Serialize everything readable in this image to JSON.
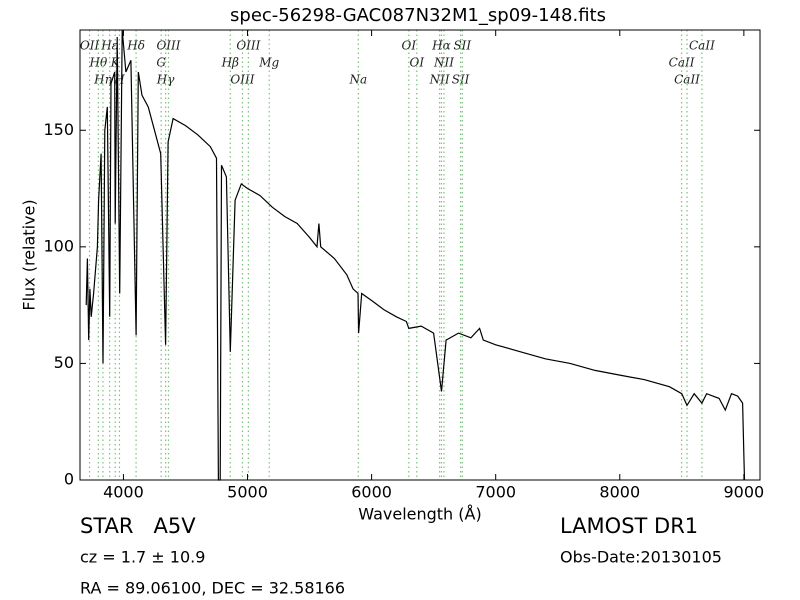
{
  "chart_data": {
    "type": "line",
    "title": "spec-56298-GAC087N32M1_sp09-148.fits",
    "x_label": "Wavelength (Å)",
    "y_label": "Flux (relative)",
    "xlim": [
      3650,
      9130
    ],
    "ylim": [
      0,
      193
    ],
    "xticks": [
      4000,
      5000,
      6000,
      7000,
      8000,
      9000
    ],
    "yticks": [
      0,
      50,
      100,
      150
    ],
    "x": [
      3700,
      3710,
      3720,
      3730,
      3740,
      3760,
      3790,
      3800,
      3820,
      3835,
      3850,
      3870,
      3889,
      3900,
      3930,
      3934,
      3950,
      3970,
      3990,
      4020,
      4060,
      4102,
      4120,
      4150,
      4200,
      4250,
      4300,
      4340,
      4360,
      4400,
      4500,
      4600,
      4700,
      4750,
      4765,
      4780,
      4790,
      4830,
      4861,
      4900,
      4950,
      5000,
      5100,
      5200,
      5300,
      5400,
      5500,
      5560,
      5575,
      5590,
      5700,
      5800,
      5850,
      5890,
      5895,
      5920,
      6000,
      6100,
      6200,
      6280,
      6300,
      6400,
      6500,
      6563,
      6600,
      6700,
      6800,
      6870,
      6900,
      7000,
      7200,
      7400,
      7600,
      7800,
      8000,
      8200,
      8400,
      8500,
      8542,
      8600,
      8662,
      8700,
      8800,
      8850,
      8900,
      8950,
      8990,
      9000,
      9005
    ],
    "series": [
      {
        "name": "flux",
        "color": "#000000",
        "values": [
          75,
          95,
          60,
          82,
          70,
          80,
          100,
          120,
          140,
          50,
          150,
          160,
          70,
          170,
          175,
          110,
          190,
          80,
          193,
          175,
          180,
          62,
          175,
          165,
          160,
          150,
          140,
          58,
          145,
          155,
          152,
          148,
          143,
          138,
          0,
          0,
          135,
          130,
          55,
          120,
          127,
          125,
          122,
          117,
          113,
          110,
          104,
          100,
          110,
          100,
          95,
          88,
          82,
          80,
          63,
          80,
          77,
          73,
          70,
          68,
          65,
          66,
          63,
          38,
          60,
          63,
          61,
          65,
          60,
          58,
          55,
          52,
          50,
          47,
          45,
          43,
          40,
          37,
          32,
          37,
          33,
          37,
          35,
          30,
          37,
          36,
          33,
          10,
          0
        ]
      }
    ],
    "lines_color": "#7fbf7f",
    "lines": [
      {
        "label": "OII",
        "wavelength": 3727
      },
      {
        "label": "Hθ",
        "wavelength": 3798
      },
      {
        "label": "Hη",
        "wavelength": 3835
      },
      {
        "label": "Hε",
        "wavelength": 3889
      },
      {
        "label": "K",
        "wavelength": 3934
      },
      {
        "label": "H",
        "wavelength": 3968
      },
      {
        "label": "Hδ",
        "wavelength": 4102
      },
      {
        "label": "G",
        "wavelength": 4304
      },
      {
        "label": "Hγ",
        "wavelength": 4340
      },
      {
        "label": "OIII",
        "wavelength": 4363
      },
      {
        "label": "Hβ",
        "wavelength": 4861
      },
      {
        "label": "OIII",
        "wavelength": 4959
      },
      {
        "label": "OIII",
        "wavelength": 5007
      },
      {
        "label": "Mg",
        "wavelength": 5175
      },
      {
        "label": "Na",
        "wavelength": 5893
      },
      {
        "label": "OI",
        "wavelength": 6300
      },
      {
        "label": "OI",
        "wavelength": 6364
      },
      {
        "label": "NII",
        "wavelength": 6548
      },
      {
        "label": "Hα",
        "wavelength": 6563
      },
      {
        "label": "NII",
        "wavelength": 6583
      },
      {
        "label": "SII",
        "wavelength": 6717
      },
      {
        "label": "SII",
        "wavelength": 6731
      },
      {
        "label": "CaII",
        "wavelength": 8498
      },
      {
        "label": "CaII",
        "wavelength": 8542
      },
      {
        "label": "CaII",
        "wavelength": 8662
      }
    ]
  },
  "info": {
    "class": "STAR   A5V",
    "cz": "cz = 1.7 ± 10.9",
    "coords": "RA = 89.06100, DEC = 32.58166",
    "survey": "LAMOST DR1",
    "obs_date": "Obs-Date:20130105"
  }
}
